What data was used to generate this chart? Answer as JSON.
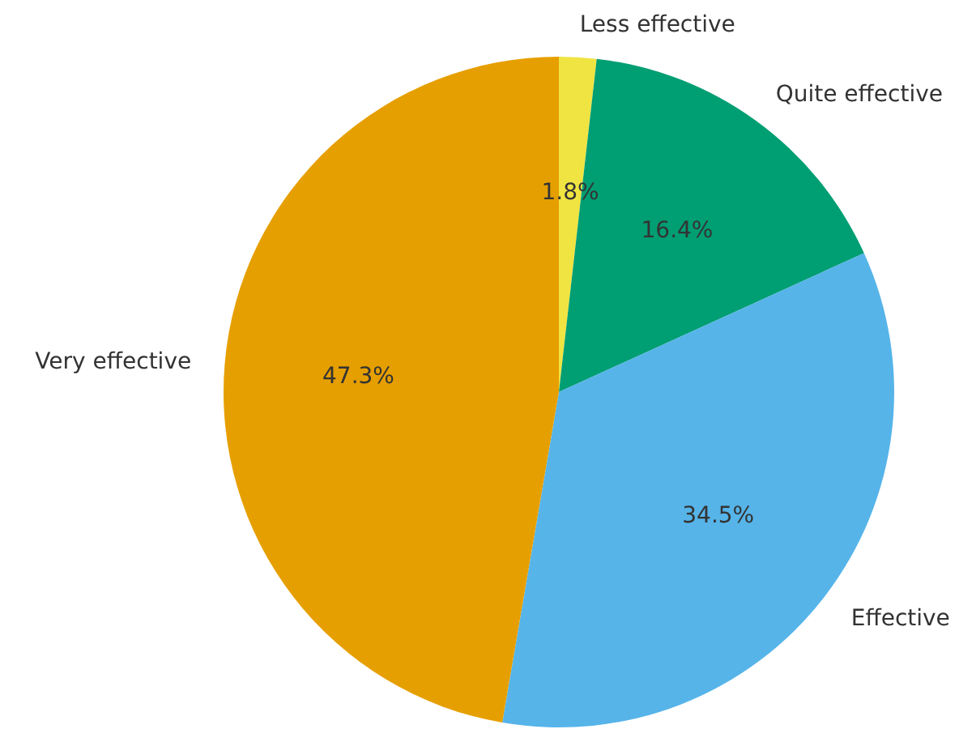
{
  "chart_data": {
    "type": "pie",
    "categories": [
      "Less effective",
      "Quite effective",
      "Effective",
      "Very effective"
    ],
    "values": [
      1.8,
      16.4,
      34.5,
      47.3
    ],
    "value_labels": [
      "1.8%",
      "16.4%",
      "34.5%",
      "47.3%"
    ],
    "colors": [
      "#f0e442",
      "#009e73",
      "#56b4e9",
      "#e69f00"
    ]
  }
}
